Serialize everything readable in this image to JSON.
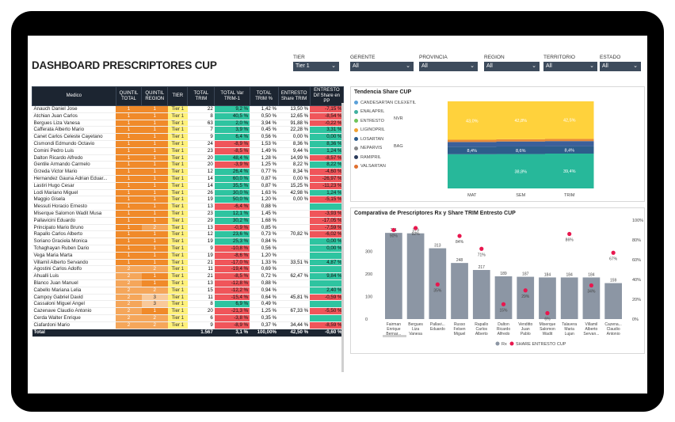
{
  "title": "DASHBOARD PRESCRIPTORES CUP",
  "filters": [
    {
      "label": "TIER",
      "value": "Tier 1"
    },
    {
      "label": "GERENTE",
      "value": "All"
    },
    {
      "label": "PROVINCIA",
      "value": "All"
    },
    {
      "label": "REGION",
      "value": "All"
    },
    {
      "label": "TERRITORIO",
      "value": "All"
    },
    {
      "label": "ESTADO",
      "value": "All"
    }
  ],
  "table": {
    "headers": [
      "Medico",
      "QUINTIL TOTAL",
      "QUINTIL REGION",
      "TIER",
      "TOTAL TRIM",
      "TOTAL Var TRIM-1",
      "TOTAL TRIM %",
      "ENTRESTO Share TRIM",
      "ENTRESTO Dif Share en PP"
    ],
    "rows": [
      [
        "Anauch Daniel Jose",
        "1",
        "1",
        "Tier 1",
        "22",
        "9,2 %",
        "1,42 %",
        "13,50 %",
        "-7,15 %"
      ],
      [
        "Atchian Juan Carlos",
        "1",
        "1",
        "Tier 1",
        "8",
        "40,5 %",
        "0,50 %",
        "12,65 %",
        "-8,54 %"
      ],
      [
        "Bergues Liza Vanesa",
        "1",
        "1",
        "Tier 1",
        "63",
        "2,0 %",
        "3,94 %",
        "91,88 %",
        "-0,22 %"
      ],
      [
        "Cafferata Alberto Mario",
        "1",
        "1",
        "Tier 1",
        "7",
        "3,9 %",
        "0,45 %",
        "22,28 %",
        "3,31 %"
      ],
      [
        "Canet Carlos Celeste Cayetano",
        "1",
        "1",
        "Tier 1",
        "9",
        "6,4 %",
        "0,56 %",
        "0,00 %",
        "0,00 %"
      ],
      [
        "Cismondi Edmundo Octavio",
        "1",
        "1",
        "Tier 1",
        "24",
        "-8,9 %",
        "1,53 %",
        "8,36 %",
        "8,36 %"
      ],
      [
        "Comini Pedro Luis",
        "1",
        "1",
        "Tier 1",
        "23",
        "-8,5 %",
        "1,49 %",
        "9,44 %",
        "1,24 %"
      ],
      [
        "Dalton Ricardo Alfredo",
        "1",
        "1",
        "Tier 1",
        "20",
        "48,4 %",
        "1,28 %",
        "14,99 %",
        "-8,57 %"
      ],
      [
        "Gentile Armando Carmelo",
        "1",
        "1",
        "Tier 1",
        "20",
        "-3,9 %",
        "1,25 %",
        "8,22 %",
        "8,22 %"
      ],
      [
        "Grzeda Victor Mario",
        "1",
        "1",
        "Tier 1",
        "12",
        "26,4 %",
        "0,77 %",
        "8,34 %",
        "-4,60 %"
      ],
      [
        "Hernandez Gauna Adrian Eduar...",
        "1",
        "1",
        "Tier 1",
        "14",
        "60,0 %",
        "0,87 %",
        "0,00 %",
        "-26,97 %"
      ],
      [
        "Lastiri Hugo Cesar",
        "1",
        "1",
        "Tier 1",
        "14",
        "35,5 %",
        "0,87 %",
        "15,25 %",
        "-11,23 %"
      ],
      [
        "Lodi Mariano Miguel",
        "1",
        "1",
        "Tier 1",
        "26",
        "30,0 %",
        "1,63 %",
        "42,98 %",
        "1,24 %"
      ],
      [
        "Maggio Gisela",
        "1",
        "1",
        "Tier 1",
        "19",
        "50,0 %",
        "1,20 %",
        "0,00 %",
        "-5,15 %"
      ],
      [
        "Messuti Horacio Ernesto",
        "1",
        "1",
        "Tier 1",
        "13",
        "-6,4 %",
        "0,88 %",
        "",
        ""
      ],
      [
        "Miserque Salomon Wadit Musa",
        "1",
        "1",
        "Tier 1",
        "23",
        "12,1 %",
        "1,45 %",
        "",
        "-3,93 %"
      ],
      [
        "Pallavicini Eduardo",
        "1",
        "1",
        "Tier 1",
        "29",
        "30,2 %",
        "1,68 %",
        "",
        "-17,05 %"
      ],
      [
        "Principato Mario Bruno",
        "1",
        "2",
        "Tier 1",
        "13",
        "-0,9 %",
        "0,85 %",
        "",
        "-7,59 %"
      ],
      [
        "Rapallo Carlos Alberto",
        "1",
        "1",
        "Tier 1",
        "12",
        "23,6 %",
        "0,73 %",
        "70,82 %",
        "-6,02 %"
      ],
      [
        "Soriano Graciela Monica",
        "1",
        "1",
        "Tier 1",
        "19",
        "25,3 %",
        "0,84 %",
        "",
        "0,00 %"
      ],
      [
        "Tchaghayan Ruben Dario",
        "1",
        "1",
        "Tier 1",
        "9",
        "-10,8 %",
        "0,56 %",
        "",
        "0,00 %"
      ],
      [
        "Vega Maria Marta",
        "1",
        "1",
        "Tier 1",
        "19",
        "-8,6 %",
        "1,20 %",
        "",
        ""
      ],
      [
        "Villamil Alberto Servando",
        "1",
        "1",
        "Tier 1",
        "21",
        "-17,0 %",
        "1,33 %",
        "33,51 %",
        "4,87 %"
      ],
      [
        "Agostini Carlos Adolfo",
        "2",
        "2",
        "Tier 1",
        "11",
        "-19,4 %",
        "0,69 %",
        "",
        ""
      ],
      [
        "Ahualli Luis",
        "2",
        "1",
        "Tier 1",
        "21",
        "-8,5 %",
        "0,72 %",
        "62,47 %",
        "9,84 %"
      ],
      [
        "Blanco Juan Manuel",
        "2",
        "1",
        "Tier 1",
        "13",
        "-12,8 %",
        "0,88 %",
        "",
        ""
      ],
      [
        "Cabello Mariana Lelia",
        "2",
        "2",
        "Tier 1",
        "15",
        "-12,2 %",
        "0,94 %",
        "",
        "2,40 %"
      ],
      [
        "Campoy Gabriel David",
        "2",
        "3",
        "Tier 1",
        "11",
        "-15,4 %",
        "0,64 %",
        "45,81 %",
        "-0,59 %"
      ],
      [
        "Cassaloni Miguel Angel",
        "2",
        "3",
        "Tier 1",
        "8",
        "6,9 %",
        "0,49 %",
        "",
        ""
      ],
      [
        "Cazenave Claudio Antonio",
        "2",
        "1",
        "Tier 1",
        "20",
        "-21,3 %",
        "1,25 %",
        "67,33 %",
        "-5,50 %"
      ],
      [
        "Cerda Walter Enrique",
        "2",
        "2",
        "Tier 1",
        "6",
        "-3,8 %",
        "0,35 %",
        "",
        ""
      ],
      [
        "Ciafardoni Mario",
        "2",
        "2",
        "Tier 1",
        "9",
        "-8,9 %",
        "0,37 %",
        "34,44 %",
        "-8,59 %"
      ]
    ],
    "total": [
      "Total",
      "",
      "",
      "",
      "1.567",
      "3,1 %",
      "100,00%",
      "42,50 %",
      "-0,60 %"
    ]
  },
  "trend": {
    "title": "Tendencia Share CUP",
    "legend": [
      "CANDESARTAN CILEXETIL",
      "ENALAPRIL",
      "ENTRESTO",
      "LIGINOPRIL",
      "LOSARTAN",
      "NEPARVIS",
      "RAMIPRIL",
      "VALSARTAN"
    ],
    "legend_colors": [
      "#5aa0d8",
      "#3fb0a0",
      "#6ec45a",
      "#f0a030",
      "#2a5a8a",
      "#888888",
      "#2a3a5a",
      "#e07030"
    ],
    "callouts": [
      "NVR",
      "BAG"
    ],
    "categories": [
      "MAT",
      "SEM",
      "TRIM"
    ],
    "segments": [
      {
        "name": "ENTRESTO",
        "color": "#27b89a",
        "values": [
          38.3,
          38.8,
          39.4
        ],
        "labels": [
          "",
          "38,8%",
          "39,4%"
        ]
      },
      {
        "name": "LOSARTAN",
        "color": "#2d5d8b",
        "values": [
          8.4,
          8.6,
          8.4
        ],
        "labels": [
          "8,4%",
          "8,6%",
          "8,4%"
        ]
      },
      {
        "name": "VALSARTAN",
        "color": "#3b5f9a",
        "values": [
          5.3,
          5.6,
          5.7
        ],
        "labels": [
          "",
          "",
          ""
        ]
      },
      {
        "name": "ENALAPRIL",
        "color": "#e88a3a",
        "values": [
          2.5,
          2.5,
          2.5
        ],
        "labels": [
          "",
          "",
          ""
        ]
      },
      {
        "name": "CANDESARTAN",
        "color": "#ffd23c",
        "values": [
          43.0,
          42.8,
          42.5
        ],
        "labels": [
          "43,0%",
          "42,8%",
          "42,5%"
        ]
      }
    ],
    "bottom_labels": [
      "8,4%",
      "8,6%",
      "8,4%"
    ]
  },
  "comparison": {
    "title": "Comparativa de Prescriptores Rx y Share TRIM Entresto CUP",
    "y_ticks_left": [
      "300",
      "200",
      "100",
      "0"
    ],
    "y_ticks_right": [
      "100%",
      "80%",
      "60%",
      "40%",
      "20%",
      "0%"
    ],
    "categories": [
      "Fairman Enrique Bernar...",
      "Bergues Liza Vanesa",
      "Pallavi... Eduardo",
      "Russo Felsen Miguel Angel",
      "Rapallo Carlos Alberto",
      "Dalton Ricardo Alfredo",
      "Venditto Juan Pablo",
      "Miserque Salomon Wadit ...",
      "Talavera Maria Lujan",
      "Villamil Alberto Servan...",
      "Cazena... Claudio Antonio"
    ],
    "bars": [
      381,
      379,
      313,
      248,
      217,
      189,
      187,
      184,
      184,
      184,
      159
    ],
    "bar_labels": [
      "381",
      "379",
      "313",
      "248",
      "217",
      "189",
      "187",
      "184",
      "184",
      "184",
      "159"
    ],
    "share": [
      90,
      92,
      35,
      84,
      71,
      15,
      29,
      6,
      86,
      34,
      67
    ],
    "share_labels": [
      "90%",
      "92%",
      "35%",
      "84%",
      "71%",
      "15%",
      "29%",
      "6%",
      "86%",
      "34%",
      "67%"
    ],
    "legend": [
      "Rx",
      "SHARE ENTRESTO CUP"
    ],
    "bar_color": "#8c96a4",
    "dot_color": "#e8174e"
  }
}
